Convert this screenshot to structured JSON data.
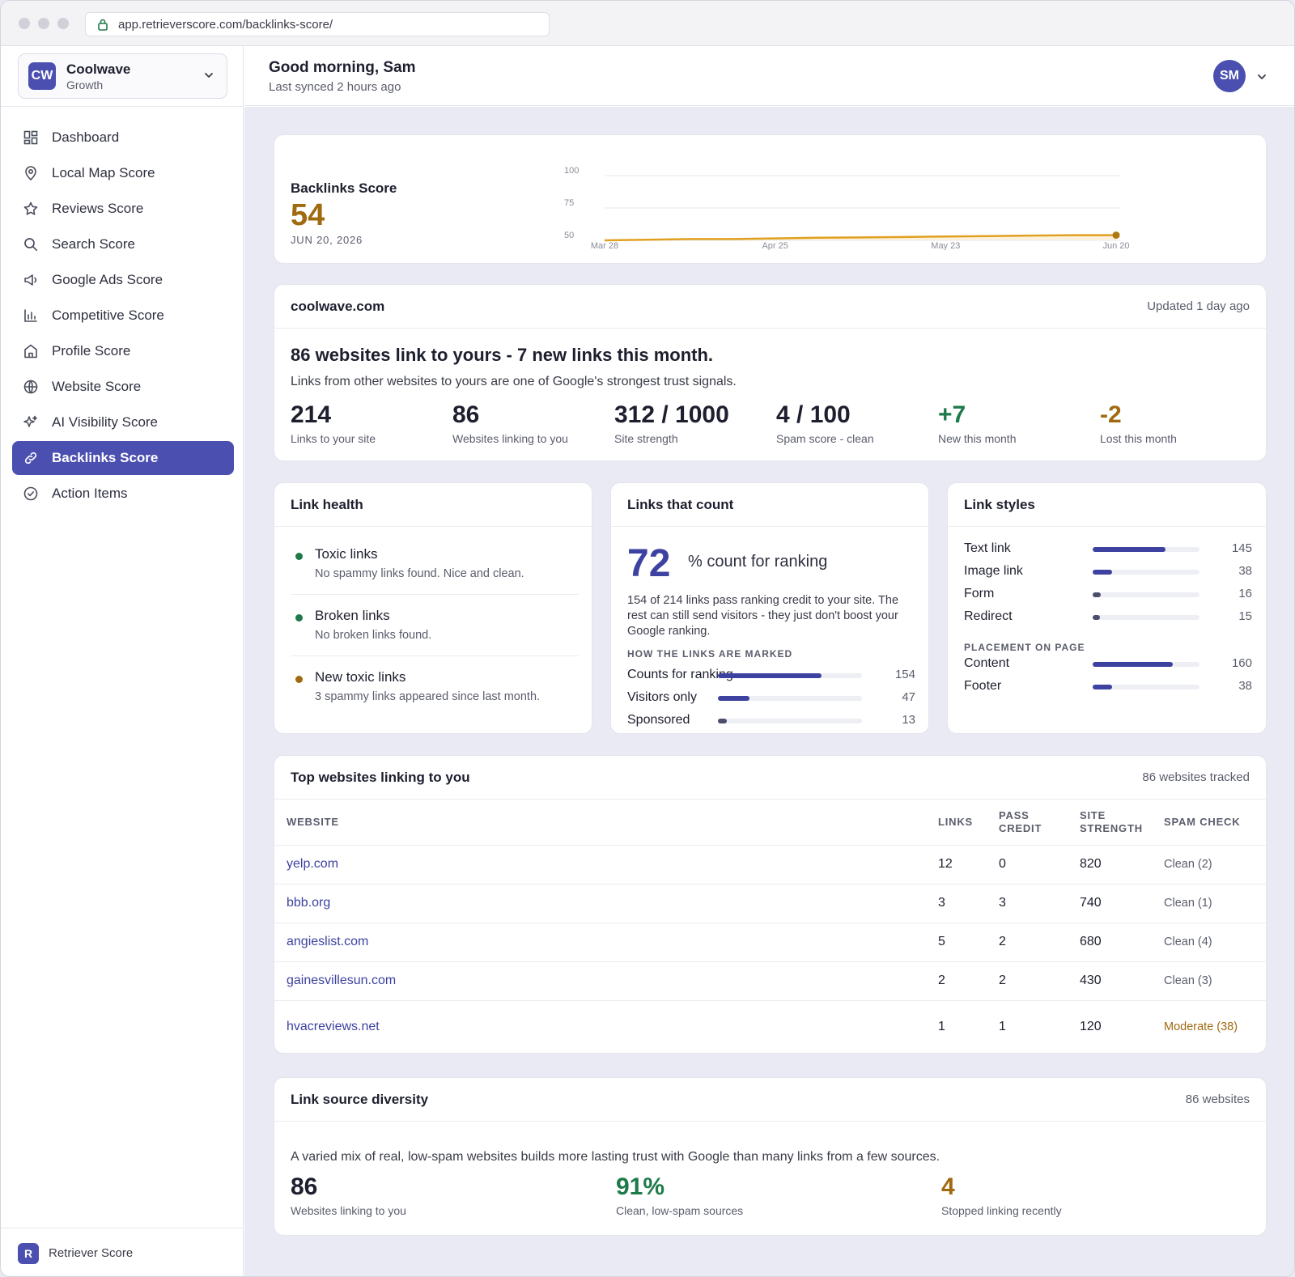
{
  "browser": {
    "url": "app.retrieverscore.com/backlinks-score/"
  },
  "org": {
    "initials": "CW",
    "name": "Coolwave",
    "plan": "Growth"
  },
  "nav": [
    {
      "label": "Dashboard",
      "icon": "dashboard-icon"
    },
    {
      "label": "Local Map Score",
      "icon": "map-pin-icon"
    },
    {
      "label": "Reviews Score",
      "icon": "star-icon"
    },
    {
      "label": "Search Score",
      "icon": "search-icon"
    },
    {
      "label": "Google Ads Score",
      "icon": "megaphone-icon"
    },
    {
      "label": "Competitive Score",
      "icon": "bar-chart-icon"
    },
    {
      "label": "Profile Score",
      "icon": "storefront-icon"
    },
    {
      "label": "Website Score",
      "icon": "globe-icon"
    },
    {
      "label": "AI Visibility Score",
      "icon": "sparkle-icon"
    },
    {
      "label": "Backlinks Score",
      "icon": "link-icon",
      "active": true
    },
    {
      "label": "Action Items",
      "icon": "check-circle-icon"
    }
  ],
  "footer": {
    "initial": "R",
    "brand": "Retriever Score"
  },
  "header": {
    "greeting": "Good morning, Sam",
    "synced": "Last synced 2 hours ago",
    "avatar": "SM"
  },
  "score": {
    "title": "Backlinks Score",
    "value": "54",
    "date": "JUN 20, 2026"
  },
  "chart_data": {
    "type": "area",
    "x": [
      "Mar 28",
      "Apr 4",
      "Apr 11",
      "Apr 18",
      "Apr 25",
      "May 2",
      "May 9",
      "May 16",
      "May 23",
      "May 30",
      "Jun 6",
      "Jun 13",
      "Jun 20"
    ],
    "y": [
      50,
      50.5,
      51,
      51,
      51.5,
      52,
      52.3,
      52.6,
      53,
      53.3,
      53.7,
      54,
      54
    ],
    "x_tick_labels": [
      "Mar 28",
      "Apr 25",
      "May 23",
      "Jun 20"
    ],
    "y_ticks": [
      50,
      75,
      100
    ],
    "ylim": [
      50,
      100
    ],
    "grid": true,
    "color": "#e0a020"
  },
  "summary": {
    "domain": "coolwave.com",
    "updated": "Updated 1 day ago",
    "headline": "86 websites link to yours - 7 new links this month.",
    "sub": "Links from other websites to yours are one of Google's strongest trust signals.",
    "stats": [
      {
        "value": "214",
        "label": "Links to your site",
        "tone": "default"
      },
      {
        "value": "86",
        "label": "Websites linking to you",
        "tone": "default"
      },
      {
        "value": "312 / 1000",
        "label": "Site strength",
        "tone": "default"
      },
      {
        "value": "4 / 100",
        "label": "Spam score - clean",
        "tone": "default"
      },
      {
        "value": "+7",
        "label": "New this month",
        "tone": "green"
      },
      {
        "value": "-2",
        "label": "Lost this month",
        "tone": "amber"
      }
    ]
  },
  "health": {
    "title": "Link health",
    "items": [
      {
        "title": "Toxic links",
        "desc": "No spammy links found. Nice and clean.",
        "status": "good",
        "color": "#1e7a4a"
      },
      {
        "title": "Broken links",
        "desc": "No broken links found.",
        "status": "good",
        "color": "#1e7a4a"
      },
      {
        "title": "New toxic links",
        "desc": "3 spammy links appeared since last month.",
        "status": "warn",
        "color": "#a06a10"
      }
    ]
  },
  "count": {
    "title": "Links that count",
    "big": "72",
    "suffix": "% count for ranking",
    "desc": "154 of 214 links pass ranking credit to your site. The rest can still send visitors - they just don't boost your Google ranking.",
    "section": "HOW THE LINKS ARE MARKED",
    "rows": [
      {
        "label": "Counts for ranking",
        "value": "154",
        "fraction": 0.72
      },
      {
        "label": "Visitors only",
        "value": "47",
        "fraction": 0.22
      },
      {
        "label": "Sponsored",
        "value": "13",
        "fraction": 0.06
      }
    ]
  },
  "styles": {
    "title": "Link styles",
    "rows": [
      {
        "label": "Text link",
        "value": "145",
        "fraction": 0.68
      },
      {
        "label": "Image link",
        "value": "38",
        "fraction": 0.18
      },
      {
        "label": "Form",
        "value": "16",
        "fraction": 0.075
      },
      {
        "label": "Redirect",
        "value": "15",
        "fraction": 0.07
      }
    ],
    "placement_title": "PLACEMENT ON PAGE",
    "placement": [
      {
        "label": "Content",
        "value": "160",
        "fraction": 0.75
      },
      {
        "label": "Footer",
        "value": "38",
        "fraction": 0.18
      }
    ]
  },
  "top": {
    "title": "Top websites linking to you",
    "meta": "86 websites tracked",
    "columns": {
      "website": "WEBSITE",
      "links": "LINKS",
      "pass1": "PASS",
      "pass2": "CREDIT",
      "site1": "SITE",
      "site2": "STRENGTH",
      "spam": "SPAM CHECK"
    },
    "rows": [
      {
        "site": "yelp.com",
        "links": "12",
        "pass": "0",
        "strength": "820",
        "spam": "Clean (2)",
        "warn": false
      },
      {
        "site": "bbb.org",
        "links": "3",
        "pass": "3",
        "strength": "740",
        "spam": "Clean (1)",
        "warn": false
      },
      {
        "site": "angieslist.com",
        "links": "5",
        "pass": "2",
        "strength": "680",
        "spam": "Clean (4)",
        "warn": false
      },
      {
        "site": "gainesvillesun.com",
        "links": "2",
        "pass": "2",
        "strength": "430",
        "spam": "Clean (3)",
        "warn": false
      },
      {
        "site": "hvacreviews.net",
        "links": "1",
        "pass": "1",
        "strength": "120",
        "spam": "Moderate (38)",
        "warn": true
      }
    ]
  },
  "diversity": {
    "title": "Link source diversity",
    "meta": "86 websites",
    "desc": "A varied mix of real, low-spam websites builds more lasting trust with Google than many links from a few sources.",
    "stats": [
      {
        "value": "86",
        "label": "Websites linking to you",
        "tone": "default"
      },
      {
        "value": "91%",
        "label": "Clean, low-spam sources",
        "tone": "green"
      },
      {
        "value": "4",
        "label": "Stopped linking recently",
        "tone": "amber"
      }
    ]
  }
}
